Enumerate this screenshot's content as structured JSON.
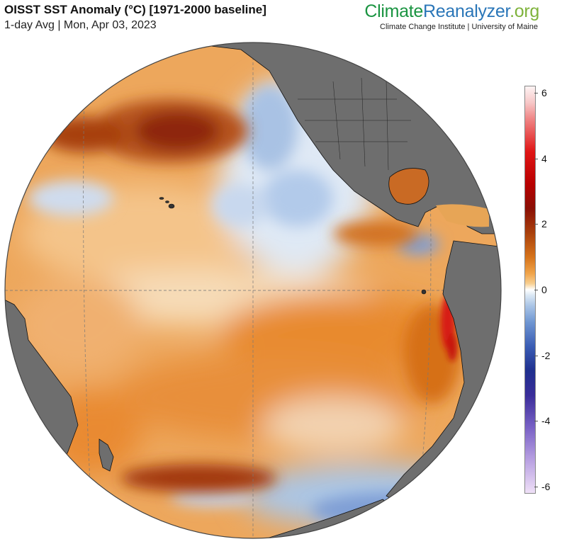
{
  "header": {
    "title": "OISST SST Anomaly (°C) [1971-2000 baseline]",
    "subtitle": "1-day Avg | Mon, Apr 03, 2023"
  },
  "brand": {
    "part1": "Climate",
    "part2": "Reanalyzer",
    "part3": ".org",
    "affiliation": "Climate Change Institute | University of Maine"
  },
  "colorbar": {
    "unit": "°C",
    "min": -6,
    "max": 6,
    "ticks": [
      "6",
      "4",
      "2",
      "0",
      "-2",
      "-4",
      "-6"
    ],
    "colors": {
      "warm_extreme": "#b80000",
      "warm": "#e8913a",
      "neutral": "#ffffff",
      "cool": "#6f96d2",
      "cool_extreme": "#1f2f8e",
      "land": "#6e6e6e"
    }
  },
  "map": {
    "projection": "orthographic",
    "region": "Pacific Ocean"
  }
}
